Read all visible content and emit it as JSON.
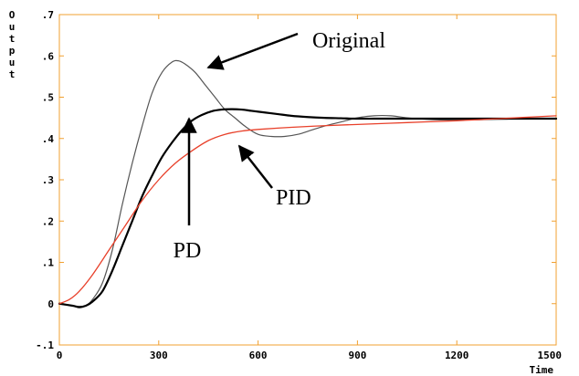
{
  "chart_data": {
    "type": "line",
    "title": "",
    "xlabel": "Time",
    "ylabel": "Output",
    "xlim": [
      0,
      1500
    ],
    "ylim": [
      -0.1,
      0.7
    ],
    "x_ticks": [
      0,
      300,
      600,
      900,
      1200,
      1500
    ],
    "x_tick_labels": [
      "0",
      "300",
      "600",
      "900",
      "1200",
      "1500"
    ],
    "y_ticks": [
      -0.1,
      0,
      0.1,
      0.2,
      0.3,
      0.4,
      0.5,
      0.6,
      0.7
    ],
    "y_tick_labels": [
      "-.1",
      "0",
      ".1",
      ".2",
      ".3",
      ".4",
      ".5",
      ".6",
      ".7"
    ],
    "grid": false,
    "frame_color": "#f0a030",
    "series": [
      {
        "name": "Original",
        "color": "#555555",
        "width": 1.2,
        "x": [
          0,
          40,
          60,
          80,
          100,
          130,
          160,
          190,
          220,
          250,
          280,
          310,
          340,
          360,
          380,
          410,
          440,
          470,
          500,
          530,
          560,
          600,
          640,
          680,
          720,
          760,
          800,
          850,
          900,
          950,
          1000,
          1050,
          1100,
          1150,
          1200,
          1250,
          1300,
          1350,
          1400,
          1450,
          1500
        ],
        "y": [
          0,
          -0.005,
          -0.01,
          -0.005,
          0.01,
          0.05,
          0.13,
          0.24,
          0.34,
          0.43,
          0.51,
          0.56,
          0.585,
          0.588,
          0.58,
          0.56,
          0.53,
          0.5,
          0.47,
          0.45,
          0.43,
          0.41,
          0.405,
          0.405,
          0.41,
          0.42,
          0.43,
          0.44,
          0.45,
          0.455,
          0.455,
          0.45,
          0.447,
          0.445,
          0.445,
          0.445,
          0.446,
          0.447,
          0.448,
          0.448,
          0.448
        ]
      },
      {
        "name": "PD",
        "color": "#000000",
        "width": 2.2,
        "x": [
          0,
          40,
          60,
          80,
          100,
          130,
          160,
          190,
          220,
          250,
          280,
          310,
          340,
          370,
          400,
          430,
          460,
          490,
          520,
          550,
          580,
          620,
          660,
          700,
          750,
          800,
          850,
          900,
          950,
          1000,
          1100,
          1200,
          1300,
          1400,
          1500
        ],
        "y": [
          0,
          -0.005,
          -0.008,
          -0.005,
          0.005,
          0.03,
          0.08,
          0.14,
          0.2,
          0.26,
          0.31,
          0.355,
          0.39,
          0.42,
          0.443,
          0.457,
          0.466,
          0.47,
          0.471,
          0.47,
          0.467,
          0.463,
          0.459,
          0.455,
          0.452,
          0.45,
          0.449,
          0.448,
          0.448,
          0.448,
          0.448,
          0.448,
          0.448,
          0.448,
          0.448
        ]
      },
      {
        "name": "PID",
        "color": "#e8402a",
        "width": 1.3,
        "x": [
          0,
          30,
          60,
          100,
          150,
          200,
          250,
          300,
          350,
          400,
          450,
          500,
          550,
          600,
          700,
          800,
          900,
          1000,
          1100,
          1200,
          1300,
          1400,
          1500
        ],
        "y": [
          0,
          0.01,
          0.03,
          0.07,
          0.13,
          0.19,
          0.25,
          0.3,
          0.34,
          0.37,
          0.395,
          0.41,
          0.418,
          0.422,
          0.427,
          0.431,
          0.434,
          0.437,
          0.44,
          0.443,
          0.447,
          0.451,
          0.455
        ]
      }
    ],
    "annotations": [
      {
        "text": "Original"
      },
      {
        "text": "PD"
      },
      {
        "text": "PID"
      }
    ],
    "legend": "none"
  }
}
